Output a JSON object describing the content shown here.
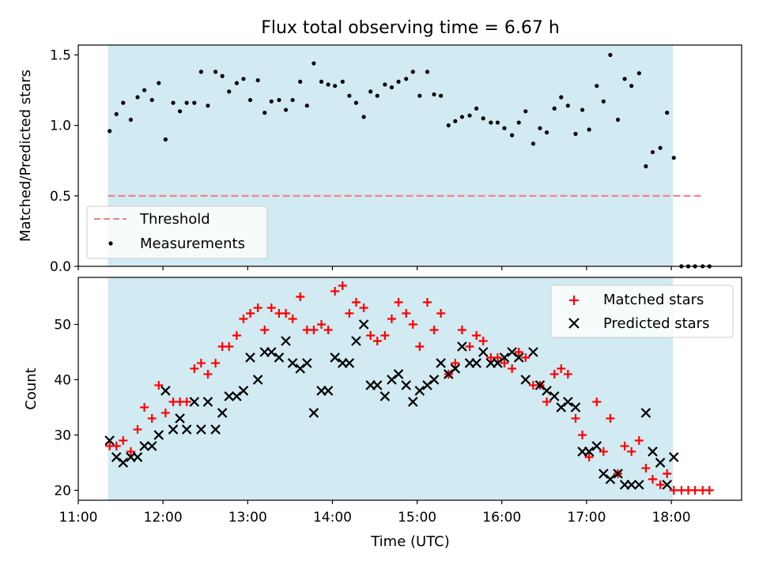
{
  "title": "Flux total observing time = 6.67 h",
  "xlabel": "Time (UTC)",
  "colors": {
    "shade": "#add8e6",
    "threshold": "#f08080",
    "matched": "#ff0000",
    "predicted": "#000000",
    "measure": "#000000"
  },
  "chart_data": [
    {
      "type": "scatter",
      "panel": "top",
      "ylabel": "Matched/Predicted stars",
      "xlim_hours": [
        11.0,
        18.83
      ],
      "ylim": [
        0.0,
        1.57
      ],
      "yticks": [
        "0.0",
        "0.5",
        "1.0",
        "1.5"
      ],
      "yticks_values": [
        0.0,
        0.5,
        1.0,
        1.5
      ],
      "shaded_span_hours": [
        11.35,
        18.02
      ],
      "threshold": {
        "name": "Threshold",
        "y": 0.5,
        "x_range_hours": [
          11.35,
          18.38
        ]
      },
      "series": [
        {
          "name": "Measurements",
          "x_hours": [
            11.37,
            11.45,
            11.53,
            11.62,
            11.7,
            11.78,
            11.87,
            11.95,
            12.03,
            12.12,
            12.2,
            12.28,
            12.37,
            12.45,
            12.53,
            12.62,
            12.7,
            12.78,
            12.87,
            12.95,
            13.03,
            13.12,
            13.2,
            13.28,
            13.37,
            13.45,
            13.53,
            13.62,
            13.7,
            13.78,
            13.87,
            13.95,
            14.03,
            14.12,
            14.2,
            14.28,
            14.37,
            14.45,
            14.53,
            14.62,
            14.7,
            14.78,
            14.87,
            14.95,
            15.03,
            15.12,
            15.2,
            15.28,
            15.37,
            15.45,
            15.53,
            15.62,
            15.7,
            15.78,
            15.87,
            15.95,
            16.03,
            16.12,
            16.2,
            16.28,
            16.37,
            16.45,
            16.53,
            16.62,
            16.7,
            16.78,
            16.87,
            16.95,
            17.03,
            17.12,
            17.2,
            17.28,
            17.37,
            17.45,
            17.53,
            17.62,
            17.7,
            17.78,
            17.87,
            17.95,
            18.03,
            18.12,
            18.2,
            18.28,
            18.37,
            18.45
          ],
          "y": [
            0.96,
            1.08,
            1.16,
            1.04,
            1.2,
            1.25,
            1.18,
            1.3,
            0.9,
            1.16,
            1.1,
            1.16,
            1.16,
            1.38,
            1.14,
            1.38,
            1.35,
            1.24,
            1.3,
            1.33,
            1.18,
            1.32,
            1.09,
            1.17,
            1.18,
            1.11,
            1.18,
            1.31,
            1.14,
            1.44,
            1.31,
            1.29,
            1.28,
            1.31,
            1.21,
            1.16,
            1.06,
            1.24,
            1.21,
            1.29,
            1.27,
            1.31,
            1.33,
            1.38,
            1.21,
            1.38,
            1.22,
            1.21,
            1.0,
            1.03,
            1.06,
            1.07,
            1.12,
            1.05,
            1.02,
            1.02,
            0.98,
            0.93,
            1.02,
            1.1,
            0.87,
            0.98,
            0.95,
            1.12,
            1.2,
            1.14,
            0.94,
            1.11,
            0.97,
            1.28,
            1.17,
            1.5,
            1.04,
            1.33,
            1.28,
            1.37,
            0.71,
            0.81,
            0.84,
            1.09,
            0.77,
            0.0,
            0.0,
            0.0,
            0.0,
            0.0
          ]
        }
      ],
      "legend": {
        "position": "lower-left",
        "entries": [
          "Threshold",
          "Measurements"
        ]
      }
    },
    {
      "type": "scatter",
      "panel": "bottom",
      "ylabel": "Count",
      "xlim_hours": [
        11.0,
        18.83
      ],
      "ylim": [
        18.2,
        58.5
      ],
      "yticks": [
        "20",
        "30",
        "40",
        "50"
      ],
      "yticks_values": [
        20,
        30,
        40,
        50
      ],
      "xticks": [
        "11:00",
        "12:00",
        "13:00",
        "14:00",
        "15:00",
        "16:00",
        "17:00",
        "18:00"
      ],
      "xticks_hours": [
        11,
        12,
        13,
        14,
        15,
        16,
        17,
        18
      ],
      "shaded_span_hours": [
        11.35,
        18.02
      ],
      "series": [
        {
          "name": "Matched stars",
          "x_hours": [
            11.37,
            11.45,
            11.53,
            11.62,
            11.7,
            11.78,
            11.87,
            11.95,
            12.03,
            12.12,
            12.2,
            12.28,
            12.37,
            12.45,
            12.53,
            12.62,
            12.7,
            12.78,
            12.87,
            12.95,
            13.03,
            13.12,
            13.2,
            13.28,
            13.37,
            13.45,
            13.53,
            13.62,
            13.7,
            13.78,
            13.87,
            13.95,
            14.03,
            14.12,
            14.2,
            14.28,
            14.37,
            14.45,
            14.53,
            14.62,
            14.7,
            14.78,
            14.87,
            14.95,
            15.03,
            15.12,
            15.2,
            15.28,
            15.37,
            15.45,
            15.53,
            15.62,
            15.7,
            15.78,
            15.87,
            15.95,
            16.03,
            16.12,
            16.2,
            16.28,
            16.37,
            16.45,
            16.53,
            16.62,
            16.7,
            16.78,
            16.87,
            16.95,
            17.03,
            17.12,
            17.2,
            17.28,
            17.37,
            17.45,
            17.53,
            17.62,
            17.7,
            17.78,
            17.87,
            17.95,
            18.03,
            18.12,
            18.2,
            18.28,
            18.37,
            18.45
          ],
          "y": [
            28,
            28,
            29,
            27,
            31,
            35,
            33,
            39,
            34,
            36,
            36,
            36,
            42,
            43,
            41,
            43,
            46,
            46,
            48,
            51,
            52,
            53,
            49,
            53,
            52,
            52,
            51,
            55,
            49,
            49,
            50,
            49,
            56,
            57,
            52,
            54,
            53,
            48,
            47,
            48,
            51,
            54,
            52,
            50,
            46,
            54,
            49,
            52,
            41,
            43,
            49,
            46,
            48,
            47,
            44,
            44,
            43,
            42,
            45,
            44,
            39,
            39,
            36,
            41,
            42,
            41,
            33,
            30,
            26,
            36,
            27,
            33,
            23,
            28,
            27,
            29,
            24,
            22,
            21,
            23,
            20,
            20,
            20,
            20,
            20,
            20
          ]
        },
        {
          "name": "Predicted stars",
          "x_hours": [
            11.37,
            11.45,
            11.53,
            11.62,
            11.7,
            11.78,
            11.87,
            11.95,
            12.03,
            12.12,
            12.2,
            12.28,
            12.37,
            12.45,
            12.53,
            12.62,
            12.7,
            12.78,
            12.87,
            12.95,
            13.03,
            13.12,
            13.2,
            13.28,
            13.37,
            13.45,
            13.53,
            13.62,
            13.7,
            13.78,
            13.87,
            13.95,
            14.03,
            14.12,
            14.2,
            14.28,
            14.37,
            14.45,
            14.53,
            14.62,
            14.7,
            14.78,
            14.87,
            14.95,
            15.03,
            15.12,
            15.2,
            15.28,
            15.37,
            15.45,
            15.53,
            15.62,
            15.7,
            15.78,
            15.87,
            15.95,
            16.03,
            16.12,
            16.2,
            16.28,
            16.37,
            16.45,
            16.53,
            16.62,
            16.7,
            16.78,
            16.87,
            16.95,
            17.03,
            17.12,
            17.2,
            17.28,
            17.37,
            17.45,
            17.53,
            17.62,
            17.7,
            17.78,
            17.87,
            17.95,
            18.03
          ],
          "y": [
            29,
            26,
            25,
            26,
            26,
            28,
            28,
            30,
            38,
            31,
            33,
            31,
            36,
            31,
            36,
            31,
            34,
            37,
            37,
            38,
            44,
            40,
            45,
            45,
            44,
            47,
            43,
            42,
            43,
            34,
            38,
            38,
            44,
            43,
            43,
            47,
            50,
            39,
            39,
            37,
            40,
            41,
            39,
            36,
            38,
            39,
            40,
            43,
            41,
            42,
            46,
            43,
            43,
            45,
            43,
            43,
            44,
            45,
            44,
            40,
            45,
            39,
            38,
            37,
            35,
            36,
            35,
            27,
            27,
            28,
            23,
            22,
            23,
            21,
            21,
            21,
            34,
            27,
            25,
            21,
            26
          ]
        }
      ],
      "legend": {
        "position": "upper-right",
        "entries": [
          "Matched stars",
          "Predicted stars"
        ]
      }
    }
  ]
}
